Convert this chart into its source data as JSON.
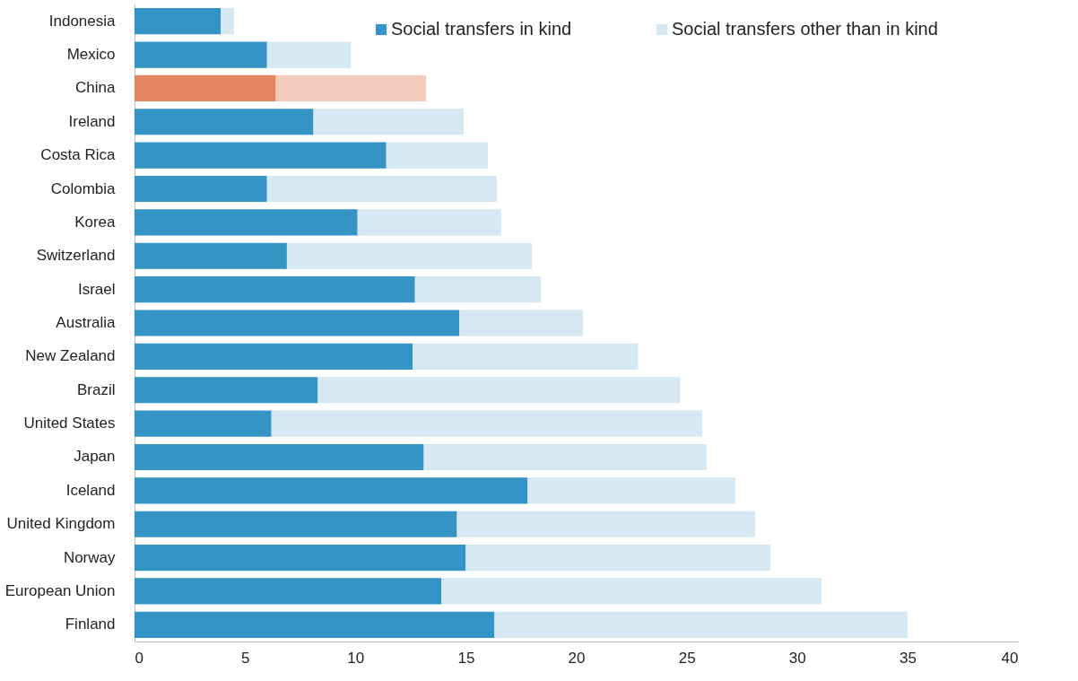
{
  "chart_data": {
    "type": "bar",
    "orientation": "horizontal",
    "stacked": true,
    "categories": [
      "Indonesia",
      "Mexico",
      "China",
      "Ireland",
      "Costa Rica",
      "Colombia",
      "Korea",
      "Switzerland",
      "Israel",
      "Australia",
      "New Zealand",
      "Brazil",
      "United States",
      "Japan",
      "Iceland",
      "United Kingdom",
      "Norway",
      "European Union",
      "Finland"
    ],
    "series": [
      {
        "name": "Social transfers in kind",
        "color": "#3494c6",
        "colors": [
          "#3494c6",
          "#3494c6",
          "#e5855f",
          "#3494c6",
          "#3494c6",
          "#3494c6",
          "#3494c6",
          "#3494c6",
          "#3494c6",
          "#3494c6",
          "#3494c6",
          "#3494c6",
          "#3494c6",
          "#3494c6",
          "#3494c6",
          "#3494c6",
          "#3494c6",
          "#3494c6",
          "#3494c6"
        ],
        "values": [
          3.9,
          6.0,
          6.4,
          8.1,
          11.4,
          6.0,
          10.1,
          6.9,
          12.7,
          14.7,
          12.6,
          8.3,
          6.2,
          13.1,
          17.8,
          14.6,
          15.0,
          13.9,
          16.3
        ]
      },
      {
        "name": "Social transfers other than in kind",
        "color": "#d5e8f3",
        "colors": [
          "#d5e8f3",
          "#d5e8f3",
          "#f4cbbd",
          "#d5e8f3",
          "#d5e8f3",
          "#d5e8f3",
          "#d5e8f3",
          "#d5e8f3",
          "#d5e8f3",
          "#d5e8f3",
          "#d5e8f3",
          "#d5e8f3",
          "#d5e8f3",
          "#d5e8f3",
          "#d5e8f3",
          "#d5e8f3",
          "#d5e8f3",
          "#d5e8f3",
          "#d5e8f3"
        ],
        "values": [
          0.6,
          3.8,
          6.8,
          6.8,
          4.6,
          10.4,
          6.5,
          11.1,
          5.7,
          5.6,
          10.2,
          16.4,
          19.5,
          12.8,
          9.4,
          13.5,
          13.8,
          17.2,
          18.7
        ]
      }
    ],
    "xlim": [
      0,
      40
    ],
    "xticks": [
      0,
      5,
      10,
      15,
      20,
      25,
      30,
      35,
      40
    ],
    "grid": false,
    "legend": "top right"
  }
}
